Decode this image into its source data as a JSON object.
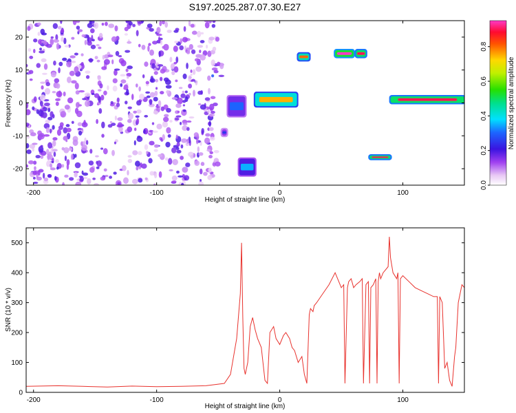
{
  "title": "S197.2025.287.07.30.E27",
  "chart_data": [
    {
      "type": "heatmap",
      "xlabel": "Height of straight line (km)",
      "ylabel": "Frequency (Hz)",
      "xlim": [
        -206,
        150
      ],
      "ylim": [
        -25,
        25
      ],
      "xticks": [
        -200,
        -100,
        0,
        100
      ],
      "yticks": [
        -20,
        -10,
        0,
        10,
        20
      ],
      "colorbar": {
        "label": "Normalized spectral amplitude",
        "range": [
          0,
          0.95
        ],
        "ticks": [
          0.0,
          0.2,
          0.4,
          0.6,
          0.8
        ]
      },
      "features": [
        {
          "x": [
            -206,
            -50
          ],
          "freq": [
            -25,
            25
          ],
          "amplitude": 0.1
        },
        {
          "x": [
            -60,
            -45
          ],
          "freq": [
            8,
            12
          ],
          "amplitude": 0.15
        },
        {
          "x": [
            -47,
            -43
          ],
          "freq": [
            -10,
            -8
          ],
          "amplitude": 0.25
        },
        {
          "x": [
            -42,
            -28
          ],
          "freq": [
            -4,
            2
          ],
          "amplitude": 0.3
        },
        {
          "x": [
            -33,
            -20
          ],
          "freq": [
            -22,
            -17
          ],
          "amplitude": 0.35
        },
        {
          "x": [
            -20,
            14
          ],
          "freq": [
            -1,
            3
          ],
          "amplitude": 0.75
        },
        {
          "x": [
            15,
            24
          ],
          "freq": [
            13,
            15
          ],
          "amplitude": 0.8
        },
        {
          "x": [
            45,
            60
          ],
          "freq": [
            14,
            16
          ],
          "amplitude": 0.95
        },
        {
          "x": [
            62,
            70
          ],
          "freq": [
            14,
            16
          ],
          "amplitude": 0.9
        },
        {
          "x": [
            73,
            90
          ],
          "freq": [
            -17,
            -16
          ],
          "amplitude": 0.9
        },
        {
          "x": [
            90,
            150
          ],
          "freq": [
            0,
            2
          ],
          "amplitude": 0.9
        }
      ]
    },
    {
      "type": "line",
      "xlabel": "Height of straight line (km)",
      "ylabel": "SNR (10 * v/v)",
      "xlim": [
        -206,
        150
      ],
      "ylim": [
        0,
        550
      ],
      "xticks": [
        -200,
        -100,
        0,
        100
      ],
      "yticks": [
        0,
        100,
        200,
        300,
        400,
        500
      ],
      "color": "#e8312c",
      "series": [
        {
          "x": [
            -206,
            -180,
            -160,
            -140,
            -120,
            -100,
            -80,
            -60,
            -45,
            -40,
            -35,
            -32,
            -31,
            -30,
            -29,
            -28,
            -26,
            -24,
            -22,
            -20,
            -18,
            -15,
            -12,
            -10,
            -8,
            -5,
            -3,
            0,
            3,
            5,
            8,
            10,
            12,
            15,
            18,
            20,
            22,
            24,
            25,
            27,
            28,
            30,
            35,
            40,
            45,
            50,
            52,
            53,
            55,
            56,
            58,
            60,
            62,
            65,
            67,
            68,
            70,
            72,
            73,
            74,
            76,
            78,
            79,
            80,
            81,
            82,
            84,
            88,
            89,
            90,
            92,
            95,
            96,
            97,
            98,
            100,
            105,
            110,
            115,
            120,
            125,
            128,
            129,
            130,
            132,
            134,
            136,
            138,
            140,
            142,
            143,
            145,
            148,
            150
          ],
          "y": [
            20,
            22,
            20,
            18,
            21,
            19,
            20,
            22,
            30,
            60,
            180,
            330,
            500,
            250,
            80,
            60,
            100,
            220,
            250,
            210,
            180,
            150,
            40,
            30,
            200,
            220,
            180,
            160,
            190,
            200,
            180,
            150,
            140,
            100,
            120,
            60,
            30,
            260,
            280,
            270,
            290,
            300,
            330,
            360,
            400,
            350,
            360,
            30,
            350,
            370,
            380,
            350,
            360,
            370,
            380,
            30,
            360,
            370,
            30,
            350,
            360,
            380,
            30,
            370,
            400,
            380,
            400,
            420,
            520,
            450,
            400,
            380,
            400,
            30,
            380,
            390,
            370,
            350,
            340,
            330,
            320,
            320,
            30,
            320,
            300,
            80,
            100,
            40,
            20,
            120,
            150,
            300,
            360,
            350
          ]
        }
      ]
    }
  ]
}
